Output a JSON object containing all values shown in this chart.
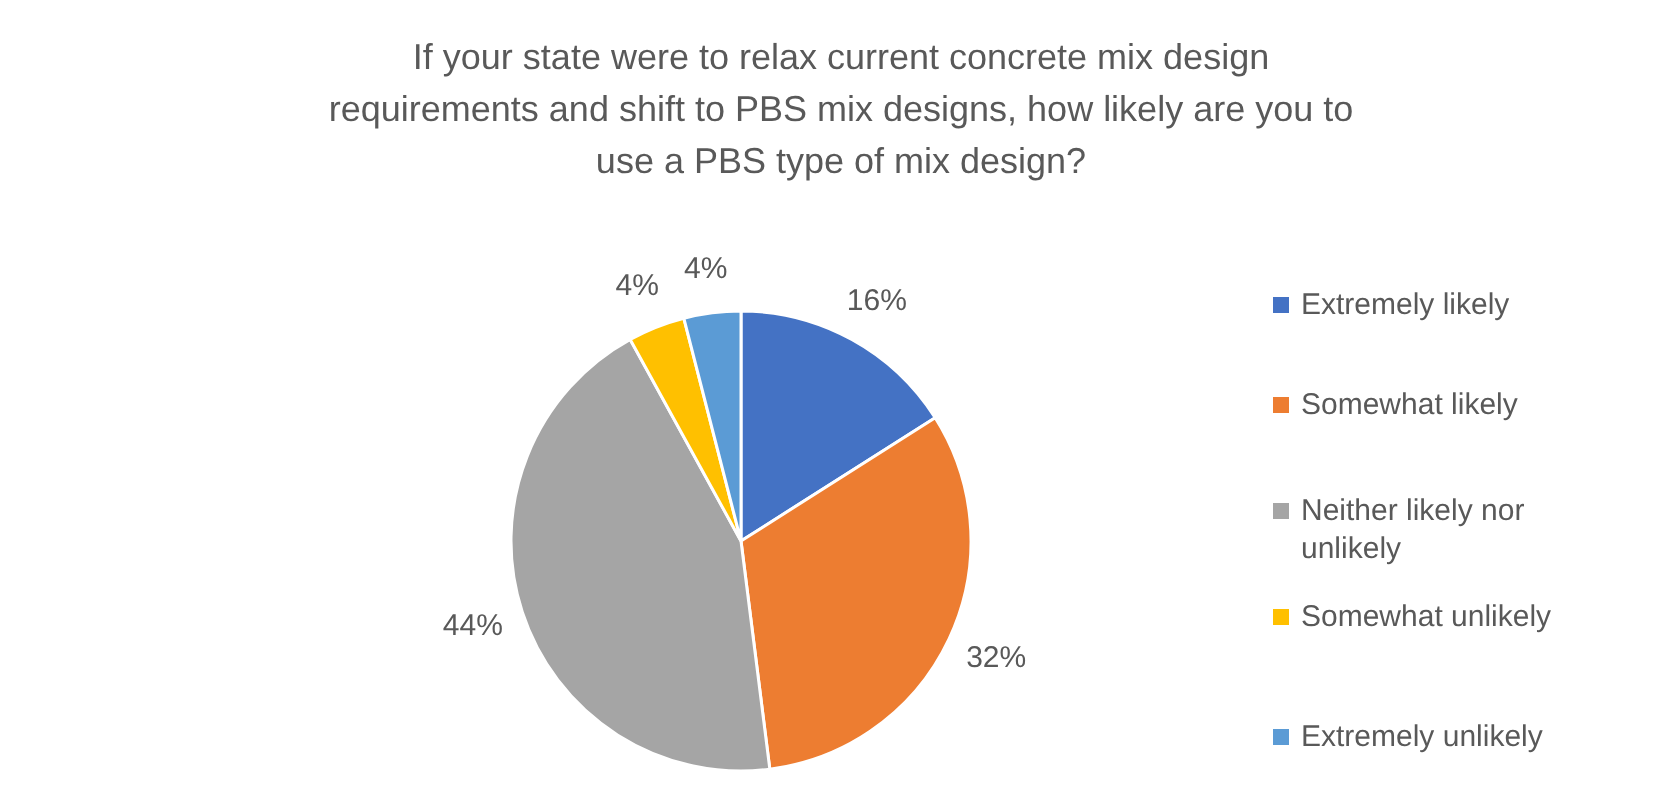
{
  "chart_data": {
    "type": "pie",
    "title": "If your state were to relax current concrete mix design requirements and shift to PBS mix designs, how likely are you to use a PBS type of mix design?",
    "categories": [
      "Extremely likely",
      "Somewhat likely",
      "Neither likely nor unlikely",
      "Somewhat unlikely",
      "Extremely unlikely"
    ],
    "values": [
      16,
      32,
      44,
      4,
      4
    ],
    "value_labels": [
      "16%",
      "32%",
      "44%",
      "4%",
      "4%"
    ],
    "colors": [
      "#4472c4",
      "#ed7d31",
      "#a5a5a5",
      "#ffc000",
      "#5b9bd5"
    ],
    "legend": "right"
  }
}
